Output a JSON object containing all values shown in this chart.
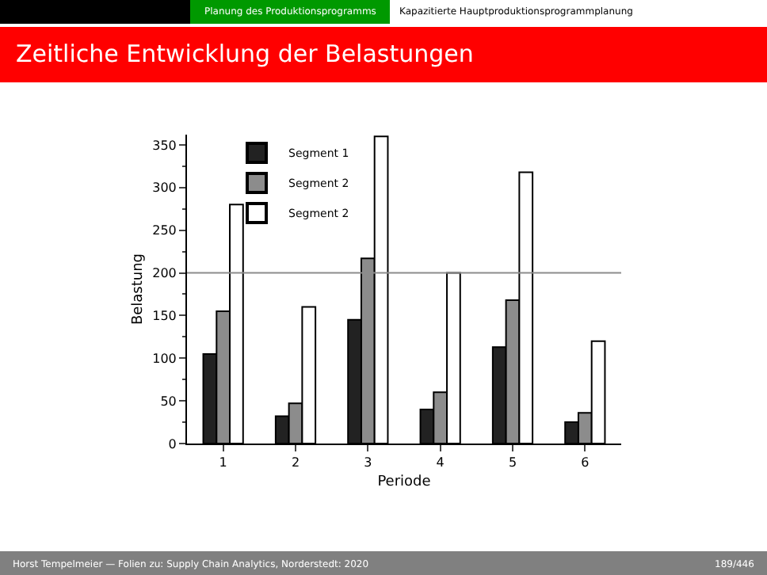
{
  "chart_data": {
    "type": "bar",
    "title": "Zeitliche Entwicklung der Belastungen",
    "xlabel": "Periode",
    "ylabel": "Belastung",
    "categories": [
      "1",
      "2",
      "3",
      "4",
      "5",
      "6"
    ],
    "series": [
      {
        "name": "Segment 1",
        "color": "#222222",
        "values": [
          105,
          32,
          145,
          40,
          113,
          25
        ]
      },
      {
        "name": "Segment 2",
        "color": "#8c8c8c",
        "values": [
          155,
          47,
          217,
          60,
          168,
          36
        ]
      },
      {
        "name": "Segment 2",
        "color": "#ffffff",
        "values": [
          280,
          160,
          360,
          200,
          318,
          120
        ]
      }
    ],
    "ylim": [
      0,
      362
    ],
    "yticks": [
      0,
      50,
      100,
      150,
      200,
      250,
      300,
      350
    ],
    "ref_lines": [
      {
        "axis": "y",
        "value": 200,
        "color": "#8c8c8c"
      }
    ],
    "legend": "top left",
    "annotations": [
      "Planung des Produktionsprogramms",
      "Kapazitierte Hauptproduktionsprogrammplanung",
      "Horst Tempelmeier — Folien zu: Supply Chain Analytics, Norderstedt: 2020",
      "189/446"
    ]
  }
}
